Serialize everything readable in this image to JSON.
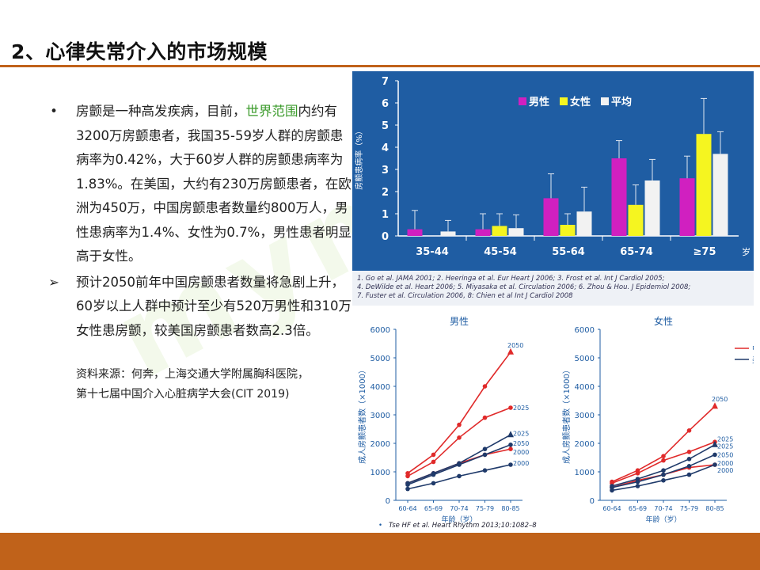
{
  "slide": {
    "title": "2、心律失常介入的市场规模",
    "bullets": [
      {
        "mark": "•",
        "pre": "房颤是一种高发疾病，目前，",
        "highlight": "世界范围",
        "post": "内约有3200万房颤患者，我国35-59岁人群的房颤患病率为0.42%，大于60岁人群的房颤患病率为1.83%。在美国，大约有230万房颤患者，在欧洲为450万，中国房颤患者数量约800万人，男性患病率为1.4%、女性为0.7%，男性患者明显高于女性。"
      },
      {
        "mark": "➢",
        "pre": "预计2050前年中国房颤患者数量将急剧上升，60岁以上人群中预计至少有520万男性和310万女性患房颤，较美国房颤患者数高2.3倍。",
        "highlight": "",
        "post": ""
      }
    ],
    "source_line1": "资料来源：何奔，上海交通大学附属胸科医院，",
    "source_line2": "第十七届中国介入心脏病学大会(CIT 2019)",
    "watermark": "mymaic"
  },
  "references": [
    "1. Go et al. JAMA 2001; 2. Heeringa et al. Eur Heart J 2006; 3. Frost et al. Int J Cardiol 2005;",
    "4. DeWilde et al. Heart 2006; 5. Miyasaka et al. Circulation 2006; 6. Zhou & Hou. J Epidemiol 2008;",
    "7. Fuster et al. Circulation 2006, 8: Chien et al Int J Cardiol 2008"
  ],
  "citation": "Tse HF et al. Heart Rhythm 2013;10:1082–8",
  "colors": {
    "accent": "#c0621a",
    "panel": "#1f5da3",
    "male": "#d020c0",
    "female": "#f5f520",
    "average": "#f2f2f2",
    "china": "#e02a2a",
    "usa": "#1f3a6a"
  },
  "chart_data": [
    {
      "type": "bar",
      "title": "",
      "ylabel": "房颤患病率（%）",
      "xlabel": "岁",
      "ylim": [
        0,
        7
      ],
      "yticks": [
        0,
        1,
        2,
        3,
        4,
        5,
        6,
        7
      ],
      "categories": [
        "35-44",
        "45-54",
        "55-64",
        "65-74",
        "≥75"
      ],
      "legend_position": "top-center",
      "series": [
        {
          "name": "男性",
          "color": "#d020c0",
          "values": [
            0.3,
            0.3,
            1.7,
            3.5,
            2.6
          ],
          "err": [
            0.85,
            0.7,
            1.1,
            0.8,
            1.0
          ]
        },
        {
          "name": "女性",
          "color": "#f5f520",
          "values": [
            0,
            0.45,
            0.5,
            1.4,
            4.6
          ],
          "err": [
            0,
            0.55,
            0.5,
            0.9,
            1.6
          ]
        },
        {
          "name": "平均",
          "color": "#f2f2f2",
          "values": [
            0.2,
            0.35,
            1.1,
            2.5,
            3.7
          ],
          "err": [
            0.5,
            0.6,
            1.1,
            0.95,
            1.0
          ]
        }
      ]
    },
    {
      "type": "line",
      "title": "男性",
      "ylabel": "成人房颤患者数（×1000）",
      "xlabel": "年龄（岁）",
      "ylim": [
        0,
        6000
      ],
      "yticks": [
        0,
        1000,
        2000,
        3000,
        4000,
        5000,
        6000
      ],
      "categories": [
        "60-64",
        "65-69",
        "70-74",
        "75-79",
        "80-85"
      ],
      "series": [
        {
          "name": "",
          "group": "中国",
          "year": "2050",
          "color": "#e02a2a",
          "values": [
            950,
            1600,
            2650,
            4000,
            5200
          ]
        },
        {
          "name": "",
          "group": "中国",
          "year": "2025",
          "color": "#e02a2a",
          "values": [
            850,
            1350,
            2200,
            2900,
            3250
          ]
        },
        {
          "name": "",
          "group": "中国",
          "year": "2000",
          "color": "#e02a2a",
          "values": [
            600,
            950,
            1300,
            1600,
            1800
          ]
        },
        {
          "name": "",
          "group": "美国",
          "year": "2050",
          "color": "#1f3a6a",
          "values": [
            600,
            950,
            1300,
            1800,
            2300
          ]
        },
        {
          "name": "",
          "group": "美国",
          "year": "2025",
          "color": "#1f3a6a",
          "values": [
            550,
            900,
            1250,
            1600,
            1950
          ]
        },
        {
          "name": "",
          "group": "美国",
          "year": "2000",
          "color": "#1f3a6a",
          "values": [
            400,
            600,
            850,
            1050,
            1250
          ]
        }
      ],
      "end_labels": [
        "2050",
        "2025",
        "2025",
        "2050",
        "2000",
        "2000"
      ]
    },
    {
      "type": "line",
      "title": "女性",
      "ylabel": "成人房颤患者数（×1000）",
      "xlabel": "年龄（岁）",
      "ylim": [
        0,
        6000
      ],
      "yticks": [
        0,
        1000,
        2000,
        3000,
        4000,
        5000,
        6000
      ],
      "categories": [
        "60-64",
        "65-69",
        "70-74",
        "75-79",
        "80-85"
      ],
      "legend": [
        "中国",
        "美国"
      ],
      "series": [
        {
          "name": "",
          "group": "中国",
          "year": "2050",
          "color": "#e02a2a",
          "values": [
            650,
            1050,
            1550,
            2450,
            3300
          ]
        },
        {
          "name": "",
          "group": "中国",
          "year": "2025",
          "color": "#e02a2a",
          "values": [
            600,
            950,
            1400,
            1700,
            2050
          ]
        },
        {
          "name": "",
          "group": "中国",
          "year": "2000",
          "color": "#e02a2a",
          "values": [
            450,
            700,
            900,
            1150,
            1250
          ]
        },
        {
          "name": "",
          "group": "美国",
          "year": "2050",
          "color": "#1f3a6a",
          "values": [
            500,
            750,
            1050,
            1450,
            1950
          ]
        },
        {
          "name": "",
          "group": "美国",
          "year": "2025",
          "color": "#1f3a6a",
          "values": [
            450,
            650,
            900,
            1200,
            1600
          ]
        },
        {
          "name": "",
          "group": "美国",
          "year": "2000",
          "color": "#1f3a6a",
          "values": [
            350,
            500,
            700,
            900,
            1250
          ]
        }
      ],
      "end_labels": [
        "2050",
        "2025",
        "2025",
        "2050",
        "2000",
        "2000"
      ]
    }
  ]
}
